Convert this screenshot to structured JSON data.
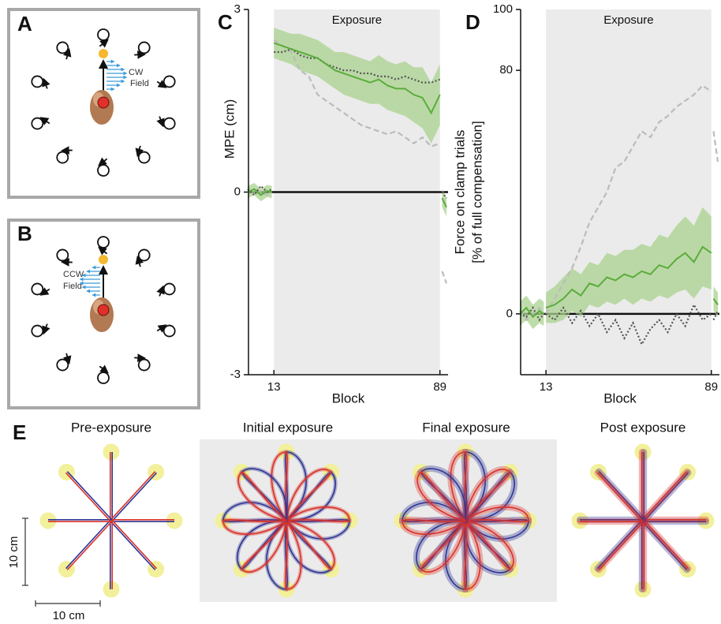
{
  "panel_labels": [
    "A",
    "B",
    "C",
    "D",
    "E"
  ],
  "panel_a": {
    "field_label": [
      "CW",
      "Field"
    ]
  },
  "panel_b": {
    "field_label": [
      "CCW",
      "Field"
    ]
  },
  "chart_data": [
    {
      "type": "line",
      "ylabel": [
        "MPE (cm)"
      ],
      "xlabel": "Block",
      "shade": {
        "label": "Exposure",
        "range": [
          13,
          89
        ],
        "color": "#ebebeb"
      },
      "xlim": [
        1,
        92
      ],
      "xticks": [
        13,
        89
      ],
      "ylim": [
        -3,
        3
      ],
      "yticks": [
        -3,
        0,
        3
      ],
      "x": [
        1,
        4,
        7,
        10,
        12,
        12.5,
        13,
        17,
        21,
        25,
        29,
        33,
        37,
        41,
        45,
        49,
        53,
        57,
        61,
        65,
        69,
        73,
        77,
        81,
        85,
        89,
        89.5,
        90,
        92
      ],
      "series": [
        {
          "color": "#5aac3c",
          "band_color": "#a9d18e",
          "style": "solid",
          "values": [
            0,
            0.05,
            -0.05,
            0.02,
            0,
            null,
            2.45,
            2.4,
            2.35,
            2.3,
            2.25,
            2.2,
            2.1,
            2.0,
            1.95,
            1.9,
            1.85,
            1.8,
            1.85,
            1.75,
            1.7,
            1.7,
            1.6,
            1.55,
            1.3,
            1.6,
            null,
            -0.1,
            -0.25
          ],
          "lower": [
            -0.1,
            -0.05,
            -0.15,
            -0.08,
            -0.1,
            null,
            2.2,
            2.15,
            2.1,
            2.0,
            1.95,
            1.9,
            1.8,
            1.7,
            1.6,
            1.55,
            1.5,
            1.45,
            1.45,
            1.35,
            1.3,
            1.25,
            1.15,
            1.05,
            0.8,
            1.1,
            null,
            -0.25,
            -0.4
          ],
          "upper": [
            0.1,
            0.15,
            0.05,
            0.12,
            0.1,
            null,
            2.7,
            2.65,
            2.6,
            2.6,
            2.55,
            2.5,
            2.4,
            2.3,
            2.3,
            2.25,
            2.2,
            2.15,
            2.25,
            2.15,
            2.1,
            2.15,
            2.05,
            2.05,
            1.8,
            2.1,
            null,
            0.05,
            -0.1
          ]
        },
        {
          "color": "#555555",
          "style": "dotted",
          "values": [
            0.05,
            -0.05,
            0.1,
            0,
            0.05,
            null,
            2.3,
            2.3,
            2.35,
            2.25,
            2.2,
            2.2,
            2.1,
            2.05,
            2.0,
            2.0,
            1.95,
            1.95,
            1.9,
            1.9,
            1.85,
            1.9,
            1.85,
            1.8,
            1.8,
            1.85,
            null,
            0.0,
            -0.1
          ]
        },
        {
          "color": "#bbbbbb",
          "style": "dashed",
          "values": [
            0,
            0.05,
            0,
            -0.05,
            0,
            null,
            2.5,
            2.4,
            2.3,
            2.0,
            1.9,
            1.6,
            1.5,
            1.4,
            1.3,
            1.2,
            1.1,
            1.05,
            1.0,
            0.95,
            1.0,
            0.9,
            0.8,
            0.9,
            0.75,
            0.8,
            null,
            -1.3,
            -1.5
          ]
        }
      ]
    },
    {
      "type": "line",
      "ylabel": [
        "Force on clamp trials",
        "[% of full compensation]"
      ],
      "xlabel": "Block",
      "shade": {
        "label": "Exposure",
        "range": [
          13,
          89
        ],
        "color": "#ebebeb"
      },
      "xlim": [
        1,
        92
      ],
      "xticks": [
        13,
        89
      ],
      "ylim": [
        -20,
        100
      ],
      "yticks": [
        0,
        80,
        100
      ],
      "x": [
        1,
        4,
        7,
        10,
        12,
        12.5,
        13,
        17,
        21,
        25,
        29,
        33,
        37,
        41,
        45,
        49,
        53,
        57,
        61,
        65,
        69,
        73,
        77,
        81,
        85,
        89,
        89.5,
        90,
        92
      ],
      "series": [
        {
          "color": "#5aac3c",
          "band_color": "#a9d18e",
          "style": "solid",
          "values": [
            0,
            2,
            -1,
            1,
            0,
            null,
            2,
            3,
            5,
            8,
            6,
            10,
            9,
            12,
            11,
            13,
            12,
            14,
            13,
            16,
            15,
            18,
            20,
            17,
            22,
            20,
            null,
            5,
            3
          ],
          "lower": [
            -4,
            -2,
            -5,
            -3,
            -4,
            null,
            -3,
            -3,
            -2,
            1,
            -1,
            3,
            2,
            4,
            3,
            5,
            3,
            5,
            4,
            6,
            5,
            7,
            8,
            5,
            9,
            8,
            null,
            1,
            -1
          ],
          "upper": [
            4,
            6,
            3,
            5,
            4,
            null,
            7,
            9,
            12,
            15,
            13,
            17,
            16,
            20,
            19,
            21,
            21,
            23,
            22,
            26,
            25,
            29,
            32,
            29,
            35,
            32,
            null,
            9,
            7
          ]
        },
        {
          "color": "#555555",
          "style": "dotted",
          "values": [
            0,
            -1,
            2,
            -2,
            0,
            null,
            0,
            -2,
            2,
            -3,
            1,
            -4,
            0,
            -6,
            -2,
            -8,
            -3,
            -10,
            -5,
            -2,
            -6,
            0,
            -4,
            3,
            -2,
            0,
            null,
            -2,
            1
          ]
        },
        {
          "color": "#bbbbbb",
          "style": "dashed",
          "values": [
            1,
            -2,
            0,
            2,
            0,
            null,
            0,
            5,
            10,
            15,
            22,
            30,
            35,
            40,
            48,
            50,
            55,
            60,
            58,
            63,
            65,
            68,
            70,
            72,
            75,
            73,
            null,
            60,
            50
          ]
        }
      ]
    }
  ],
  "panel_e": {
    "titles": [
      "Pre-exposure",
      "Initial exposure",
      "Final exposure",
      "Post exposure"
    ],
    "scale_bars": [
      "10 cm",
      "10 cm"
    ]
  }
}
